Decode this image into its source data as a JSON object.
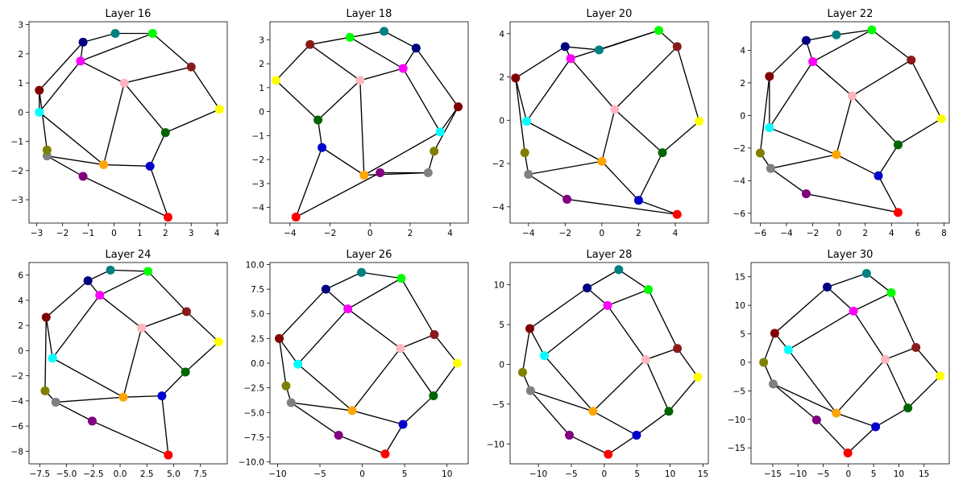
{
  "node_colors": {
    "n0": "#ff0000",
    "n1": "#0000cd",
    "n2": "#006400",
    "n3": "#ffff00",
    "n4": "#8b1a1a",
    "n5": "#00ff00",
    "n6": "#008080",
    "n7": "#000080",
    "n8": "#ff00ff",
    "n9": "#ffb6c1",
    "n10": "#ffa500",
    "n11": "#800080",
    "n12": "#808080",
    "n13": "#808000",
    "n14": "#00ffff",
    "n15": "#800000"
  },
  "edges": [
    [
      "n0",
      "n1"
    ],
    [
      "n0",
      "n11"
    ],
    [
      "n1",
      "n2"
    ],
    [
      "n1",
      "n10"
    ],
    [
      "n2",
      "n3"
    ],
    [
      "n2",
      "n9"
    ],
    [
      "n3",
      "n4"
    ],
    [
      "n4",
      "n5"
    ],
    [
      "n4",
      "n9"
    ],
    [
      "n5",
      "n6"
    ],
    [
      "n5",
      "n8"
    ],
    [
      "n6",
      "n7"
    ],
    [
      "n7",
      "n15"
    ],
    [
      "n7",
      "n8"
    ],
    [
      "n8",
      "n9"
    ],
    [
      "n8",
      "n14"
    ],
    [
      "n9",
      "n10"
    ],
    [
      "n10",
      "n14"
    ],
    [
      "n10",
      "n12"
    ],
    [
      "n11",
      "n12"
    ],
    [
      "n12",
      "n13"
    ],
    [
      "n13",
      "n15"
    ],
    [
      "n14",
      "n15"
    ]
  ],
  "chart_data": [
    {
      "type": "scatter",
      "title": "Layer 16",
      "xlim": [
        -3.3,
        4.4
      ],
      "ylim": [
        -3.8,
        3.1
      ],
      "xticks": [
        -3,
        -2,
        -1,
        0,
        1,
        2,
        3,
        4
      ],
      "yticks": [
        3,
        2,
        1,
        0,
        -1,
        -2,
        -3
      ],
      "points": {
        "n0": [
          2.1,
          -3.6
        ],
        "n1": [
          1.4,
          -1.85
        ],
        "n2": [
          2.0,
          -0.7
        ],
        "n3": [
          4.1,
          0.1
        ],
        "n4": [
          3.0,
          1.55
        ],
        "n5": [
          1.5,
          2.7
        ],
        "n6": [
          0.05,
          2.7
        ],
        "n7": [
          -1.2,
          2.4
        ],
        "n8": [
          -1.3,
          1.75
        ],
        "n9": [
          0.4,
          1.0
        ],
        "n10": [
          -0.4,
          -1.8
        ],
        "n11": [
          -1.2,
          -2.2
        ],
        "n12": [
          -2.6,
          -1.5
        ],
        "n13": [
          -2.6,
          -1.3
        ],
        "n14": [
          -2.9,
          0.0
        ],
        "n15": [
          -2.9,
          0.75
        ]
      }
    },
    {
      "type": "scatter",
      "title": "Layer 18",
      "xlim": [
        -5.0,
        4.9
      ],
      "ylim": [
        -4.65,
        3.75
      ],
      "xticks": [
        -4,
        -2,
        0,
        2,
        4
      ],
      "yticks": [
        3,
        2,
        1,
        0,
        -1,
        -2,
        -3,
        -4
      ],
      "points": {
        "n0": [
          -3.7,
          -4.4
        ],
        "n1": [
          -2.4,
          -1.5
        ],
        "n2": [
          -2.6,
          -0.35
        ],
        "n3": [
          -4.7,
          1.3
        ],
        "n4": [
          -3.0,
          2.8
        ],
        "n5": [
          -1.0,
          3.1
        ],
        "n6": [
          0.7,
          3.35
        ],
        "n7": [
          2.3,
          2.65
        ],
        "n8": [
          1.65,
          1.8
        ],
        "n9": [
          -0.5,
          1.3
        ],
        "n10": [
          -0.3,
          -2.65
        ],
        "n11": [
          0.5,
          -2.55
        ],
        "n12": [
          2.9,
          -2.55
        ],
        "n13": [
          3.2,
          -1.65
        ],
        "n14": [
          3.5,
          -0.85
        ],
        "n15": [
          4.4,
          0.2
        ]
      }
    },
    {
      "type": "scatter",
      "title": "Layer 20",
      "xlim": [
        -5.0,
        5.8
      ],
      "ylim": [
        -4.75,
        4.55
      ],
      "xticks": [
        -4,
        -2,
        0,
        2,
        4
      ],
      "yticks": [
        4,
        2,
        0,
        -2,
        -4
      ],
      "points": {
        "n0": [
          4.1,
          -4.35
        ],
        "n1": [
          2.0,
          -3.7
        ],
        "n2": [
          3.3,
          -1.5
        ],
        "n3": [
          5.3,
          -0.05
        ],
        "n4": [
          4.1,
          3.4
        ],
        "n5": [
          3.1,
          4.15
        ],
        "n6": [
          -0.15,
          3.25
        ],
        "n7": [
          -2.0,
          3.4
        ],
        "n8": [
          -1.7,
          2.85
        ],
        "n9": [
          0.7,
          0.5
        ],
        "n10": [
          0.0,
          -1.9
        ],
        "n11": [
          -1.9,
          -3.65
        ],
        "n12": [
          -4.0,
          -2.5
        ],
        "n13": [
          -4.2,
          -1.5
        ],
        "n14": [
          -4.1,
          -0.05
        ],
        "n15": [
          -4.7,
          1.95
        ]
      }
    },
    {
      "type": "scatter",
      "title": "Layer 22",
      "xlim": [
        -6.7,
        8.4
      ],
      "ylim": [
        -6.6,
        5.75
      ],
      "xticks": [
        -6,
        -4,
        -2,
        0,
        2,
        4,
        6,
        8
      ],
      "yticks": [
        4,
        2,
        0,
        -2,
        -4,
        -6
      ],
      "points": {
        "n0": [
          4.5,
          -5.95
        ],
        "n1": [
          3.0,
          -3.7
        ],
        "n2": [
          4.5,
          -1.8
        ],
        "n3": [
          7.8,
          -0.2
        ],
        "n4": [
          5.5,
          3.4
        ],
        "n5": [
          2.5,
          5.25
        ],
        "n6": [
          -0.2,
          4.95
        ],
        "n7": [
          -2.5,
          4.6
        ],
        "n8": [
          -2.0,
          3.3
        ],
        "n9": [
          1.0,
          1.2
        ],
        "n10": [
          -0.2,
          -2.4
        ],
        "n11": [
          -2.5,
          -4.8
        ],
        "n12": [
          -5.2,
          -3.25
        ],
        "n13": [
          -6.0,
          -2.3
        ],
        "n14": [
          -5.3,
          -0.75
        ],
        "n15": [
          -5.3,
          2.4
        ]
      }
    },
    {
      "type": "scatter",
      "title": "Layer 24",
      "xlim": [
        -8.5,
        10.0
      ],
      "ylim": [
        -9.0,
        7.0
      ],
      "xticks": [
        -7.5,
        -5.0,
        -2.5,
        0.0,
        2.5,
        5.0,
        7.5
      ],
      "yticks": [
        6,
        4,
        2,
        0,
        -2,
        -4,
        -6,
        -8
      ],
      "points": {
        "n0": [
          4.5,
          -8.3
        ],
        "n1": [
          3.9,
          -3.6
        ],
        "n2": [
          6.1,
          -1.7
        ],
        "n3": [
          9.2,
          0.7
        ],
        "n4": [
          6.2,
          3.1
        ],
        "n5": [
          2.6,
          6.3
        ],
        "n6": [
          -0.9,
          6.4
        ],
        "n7": [
          -3.0,
          5.55
        ],
        "n8": [
          -1.9,
          4.4
        ],
        "n9": [
          2.0,
          1.8
        ],
        "n10": [
          0.3,
          -3.7
        ],
        "n11": [
          -2.6,
          -5.6
        ],
        "n12": [
          -6.0,
          -4.1
        ],
        "n13": [
          -7.0,
          -3.2
        ],
        "n14": [
          -6.3,
          -0.6
        ],
        "n15": [
          -6.9,
          2.65
        ]
      }
    },
    {
      "type": "scatter",
      "title": "Layer 26",
      "xlim": [
        -10.9,
        12.5
      ],
      "ylim": [
        -10.2,
        10.2
      ],
      "xticks": [
        -10,
        -5,
        0,
        5,
        10
      ],
      "yticks": [
        10.0,
        7.5,
        5.0,
        2.5,
        0.0,
        -2.5,
        -5.0,
        -7.5,
        -10.0
      ],
      "points": {
        "n0": [
          2.7,
          -9.2
        ],
        "n1": [
          4.8,
          -6.2
        ],
        "n2": [
          8.4,
          -3.3
        ],
        "n3": [
          11.2,
          0.0
        ],
        "n4": [
          8.5,
          2.9
        ],
        "n5": [
          4.6,
          8.6
        ],
        "n6": [
          -0.1,
          9.2
        ],
        "n7": [
          -4.3,
          7.5
        ],
        "n8": [
          -1.7,
          5.5
        ],
        "n9": [
          4.5,
          1.5
        ],
        "n10": [
          -1.2,
          -4.8
        ],
        "n11": [
          -2.8,
          -7.3
        ],
        "n12": [
          -8.4,
          -4.0
        ],
        "n13": [
          -9.0,
          -2.3
        ],
        "n14": [
          -7.6,
          -0.1
        ],
        "n15": [
          -9.8,
          2.5
        ]
      }
    },
    {
      "type": "scatter",
      "title": "Layer 28",
      "xlim": [
        -14.3,
        15.8
      ],
      "ylim": [
        -12.5,
        12.8
      ],
      "xticks": [
        -10,
        -5,
        0,
        5,
        10,
        15
      ],
      "yticks": [
        10,
        5,
        0,
        -5,
        -10
      ],
      "points": {
        "n0": [
          0.6,
          -11.3
        ],
        "n1": [
          4.9,
          -8.9
        ],
        "n2": [
          9.8,
          -5.9
        ],
        "n3": [
          14.2,
          -1.6
        ],
        "n4": [
          11.1,
          2.0
        ],
        "n5": [
          6.7,
          9.4
        ],
        "n6": [
          2.2,
          11.9
        ],
        "n7": [
          -2.6,
          9.6
        ],
        "n8": [
          0.5,
          7.4
        ],
        "n9": [
          6.3,
          0.6
        ],
        "n10": [
          -1.7,
          -5.9
        ],
        "n11": [
          -5.3,
          -8.9
        ],
        "n12": [
          -11.2,
          -3.3
        ],
        "n13": [
          -12.4,
          -1.0
        ],
        "n14": [
          -9.1,
          1.1
        ],
        "n15": [
          -11.3,
          4.5
        ]
      }
    },
    {
      "type": "scatter",
      "title": "Layer 30",
      "xlim": [
        -19.3,
        20.0
      ],
      "ylim": [
        -17.8,
        17.5
      ],
      "xticks": [
        -15,
        -10,
        -5,
        0,
        5,
        10,
        15
      ],
      "yticks": [
        15,
        10,
        5,
        0,
        -5,
        -10,
        -15
      ],
      "points": {
        "n0": [
          -0.1,
          -15.9
        ],
        "n1": [
          5.4,
          -11.3
        ],
        "n2": [
          11.8,
          -8.0
        ],
        "n3": [
          18.2,
          -2.4
        ],
        "n4": [
          13.4,
          2.6
        ],
        "n5": [
          8.5,
          12.2
        ],
        "n6": [
          3.6,
          15.6
        ],
        "n7": [
          -4.2,
          13.2
        ],
        "n8": [
          1.0,
          9.0
        ],
        "n9": [
          7.3,
          0.5
        ],
        "n10": [
          -2.4,
          -8.9
        ],
        "n11": [
          -6.3,
          -10.1
        ],
        "n12": [
          -14.9,
          -3.8
        ],
        "n13": [
          -16.8,
          0.0
        ],
        "n14": [
          -11.9,
          2.2
        ],
        "n15": [
          -14.6,
          5.1
        ]
      }
    }
  ]
}
